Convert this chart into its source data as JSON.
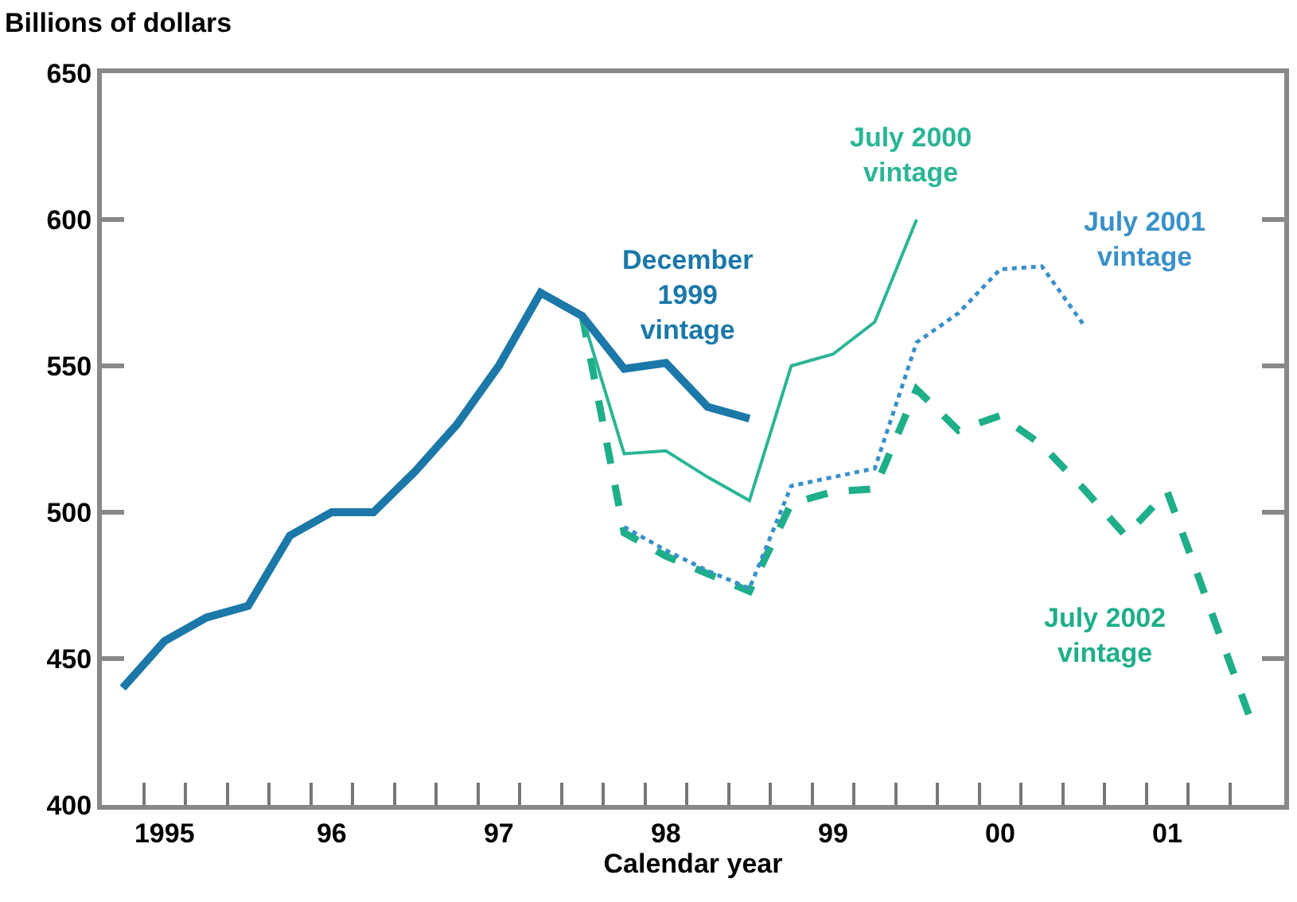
{
  "chart_data": {
    "type": "line",
    "ylabel": "Billions of dollars",
    "xlabel": "Calendar year",
    "categories": [
      null,
      "1995",
      null,
      null,
      null,
      "96",
      null,
      null,
      null,
      "97",
      null,
      null,
      null,
      "98",
      null,
      null,
      null,
      "99",
      null,
      null,
      null,
      "00",
      null,
      null,
      null,
      "01",
      null,
      null
    ],
    "ylim": [
      400,
      650
    ],
    "yticks": [
      400,
      450,
      500,
      550,
      600,
      650
    ],
    "grid": false,
    "legend": false,
    "marker": "none",
    "series": [
      {
        "name": "December 1999 vintage",
        "color": "#1b78a8",
        "line_style": "solid",
        "values": [
          440,
          456,
          464,
          468,
          492,
          500,
          500,
          514,
          530,
          550,
          575,
          567,
          549,
          551,
          536,
          532,
          null,
          null,
          null,
          null,
          null,
          null,
          null,
          null,
          null,
          null,
          null,
          null
        ]
      },
      {
        "name": "July 2000 vintage",
        "color": "#2bb596",
        "line_style": "solid",
        "values": [
          null,
          null,
          null,
          null,
          null,
          null,
          null,
          null,
          null,
          null,
          null,
          567,
          520,
          521,
          512,
          504,
          550,
          554,
          565,
          600,
          null,
          null,
          null,
          null,
          null,
          null,
          null,
          null
        ]
      },
      {
        "name": "July 2001 vintage",
        "color": "#3a90c8",
        "line_style": "dotted",
        "values": [
          null,
          null,
          null,
          null,
          null,
          null,
          null,
          null,
          null,
          null,
          null,
          null,
          495,
          487,
          480,
          474,
          509,
          512,
          515,
          558,
          568,
          583,
          584,
          564,
          null,
          null,
          null,
          null
        ]
      },
      {
        "name": "July 2002 vintage",
        "color": "#1fae8a",
        "line_style": "dashed",
        "values": [
          null,
          null,
          null,
          null,
          null,
          null,
          null,
          null,
          null,
          null,
          null,
          567,
          493,
          485,
          479,
          473,
          503,
          507,
          508,
          542,
          528,
          533,
          523,
          508,
          492,
          507,
          468,
          429
        ]
      }
    ]
  }
}
